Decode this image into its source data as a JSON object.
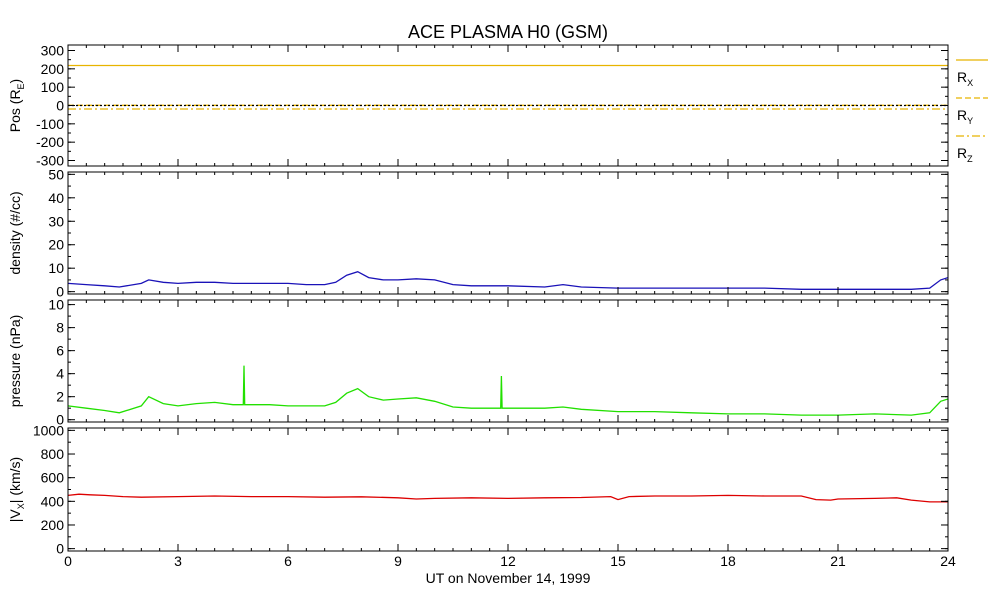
{
  "title": "ACE PLASMA H0 (GSM)",
  "xlabel": "UT on November 14, 1999",
  "x_ticks": [
    "0",
    "3",
    "6",
    "9",
    "12",
    "15",
    "18",
    "21",
    "24"
  ],
  "xlim": [
    0,
    24
  ],
  "legend": {
    "placement": "right-of-top-panel",
    "entries": [
      {
        "base": "R",
        "sub": "X",
        "color": "#e8b400",
        "style": "solid"
      },
      {
        "base": "R",
        "sub": "Y",
        "color": "#e8b400",
        "style": "dashed"
      },
      {
        "base": "R",
        "sub": "Z",
        "color": "#e8b400",
        "style": "dashdot"
      }
    ]
  },
  "chart_data": [
    {
      "type": "line",
      "ylabel_base": "Pos (R",
      "ylabel_sub": "E",
      "ylabel_end": ")",
      "ylim": [
        -330,
        330
      ],
      "y_ticks": [
        "300",
        "200",
        "100",
        "0",
        "-100",
        "-200",
        "-300"
      ],
      "y_tick_values": [
        300,
        200,
        100,
        0,
        -100,
        -200,
        -300
      ],
      "series": [
        {
          "name": "RX",
          "color": "#e8b400",
          "dash": "",
          "x": [
            0,
            24
          ],
          "y": [
            218,
            218
          ]
        },
        {
          "name": "RY",
          "color": "#e8b400",
          "dash": "6,3",
          "x": [
            0,
            24
          ],
          "y": [
            1,
            1
          ]
        },
        {
          "name": "RZ",
          "color": "#e8b400",
          "dash": "8,3,2,3",
          "x": [
            0,
            24
          ],
          "y": [
            -19,
            -19
          ]
        },
        {
          "name": "zero",
          "color": "#000000",
          "dash": "2,2",
          "x": [
            0,
            24
          ],
          "y": [
            0,
            0
          ]
        }
      ]
    },
    {
      "type": "line",
      "ylabel": "density (#/cc)",
      "ylim": [
        -1,
        51
      ],
      "y_ticks": [
        "50",
        "40",
        "30",
        "20",
        "10",
        "0"
      ],
      "y_tick_values": [
        50,
        40,
        30,
        20,
        10,
        0
      ],
      "series": [
        {
          "name": "density",
          "color": "#1a12b8",
          "dash": "",
          "x": [
            0,
            0.5,
            1,
            1.4,
            2.0,
            2.2,
            2.6,
            3,
            3.5,
            4,
            4.5,
            5,
            5.5,
            6,
            6.5,
            7,
            7.3,
            7.6,
            7.9,
            8.2,
            8.6,
            9,
            9.5,
            10,
            10.5,
            11,
            12,
            13,
            13.5,
            14,
            15,
            16,
            17,
            18,
            19,
            20,
            21,
            22,
            23,
            23.5,
            23.8,
            24
          ],
          "y": [
            3.5,
            3,
            2.5,
            2,
            3.5,
            5,
            4,
            3.5,
            4,
            4,
            3.5,
            3.5,
            3.5,
            3.5,
            3,
            3,
            4,
            7,
            8.5,
            6,
            5,
            5,
            5.5,
            5,
            3,
            2.5,
            2.5,
            2,
            3,
            2,
            1.5,
            1.5,
            1.5,
            1.5,
            1.5,
            1,
            1,
            1,
            1,
            1.5,
            5,
            6
          ]
        }
      ]
    },
    {
      "type": "line",
      "ylabel": "pressure (nPa)",
      "ylim": [
        -0.2,
        10.4
      ],
      "y_ticks": [
        "10",
        "8",
        "6",
        "4",
        "2",
        "0"
      ],
      "y_tick_values": [
        10,
        8,
        6,
        4,
        2,
        0
      ],
      "series": [
        {
          "name": "pressure",
          "color": "#22e000",
          "dash": "",
          "x": [
            0,
            0.5,
            1,
            1.4,
            2.0,
            2.2,
            2.6,
            3,
            3.5,
            4,
            4.5,
            4.78,
            4.8,
            4.82,
            5,
            5.5,
            6,
            6.5,
            7,
            7.3,
            7.6,
            7.9,
            8.2,
            8.6,
            9,
            9.5,
            10,
            10.5,
            11,
            11.8,
            11.82,
            11.84,
            12,
            13,
            13.5,
            14,
            15,
            16,
            17,
            18,
            19,
            20,
            21,
            22,
            23,
            23.5,
            23.8,
            24
          ],
          "y": [
            1.2,
            1.0,
            0.8,
            0.6,
            1.2,
            2.0,
            1.4,
            1.2,
            1.4,
            1.5,
            1.3,
            1.3,
            4.7,
            1.3,
            1.3,
            1.3,
            1.2,
            1.2,
            1.2,
            1.5,
            2.3,
            2.7,
            2.0,
            1.7,
            1.8,
            1.9,
            1.6,
            1.1,
            1.0,
            1.0,
            3.8,
            1.0,
            1.0,
            1.0,
            1.1,
            0.9,
            0.7,
            0.7,
            0.6,
            0.5,
            0.5,
            0.4,
            0.4,
            0.5,
            0.4,
            0.6,
            1.6,
            1.8
          ]
        }
      ]
    },
    {
      "type": "line",
      "ylabel_base": "|V",
      "ylabel_sub": "X",
      "ylabel_end": "| (km/s)",
      "ylim": [
        -20,
        1020
      ],
      "y_ticks": [
        "1000",
        "800",
        "600",
        "400",
        "200",
        "0"
      ],
      "y_tick_values": [
        1000,
        800,
        600,
        400,
        200,
        0
      ],
      "series": [
        {
          "name": "vx",
          "color": "#dd0000",
          "dash": "",
          "x": [
            0,
            0.3,
            0.6,
            1,
            1.5,
            2,
            3,
            4,
            5,
            6,
            7,
            8,
            9,
            9.5,
            10,
            11,
            12,
            13,
            14,
            14.8,
            15,
            15.3,
            16,
            17,
            18,
            19,
            20,
            20.4,
            20.8,
            21,
            22,
            22.6,
            23,
            23.5,
            24
          ],
          "y": [
            450,
            460,
            455,
            450,
            440,
            435,
            440,
            445,
            440,
            440,
            435,
            438,
            430,
            420,
            425,
            430,
            425,
            430,
            432,
            440,
            415,
            440,
            445,
            445,
            450,
            445,
            445,
            415,
            410,
            420,
            425,
            430,
            410,
            395,
            395
          ]
        }
      ]
    }
  ]
}
